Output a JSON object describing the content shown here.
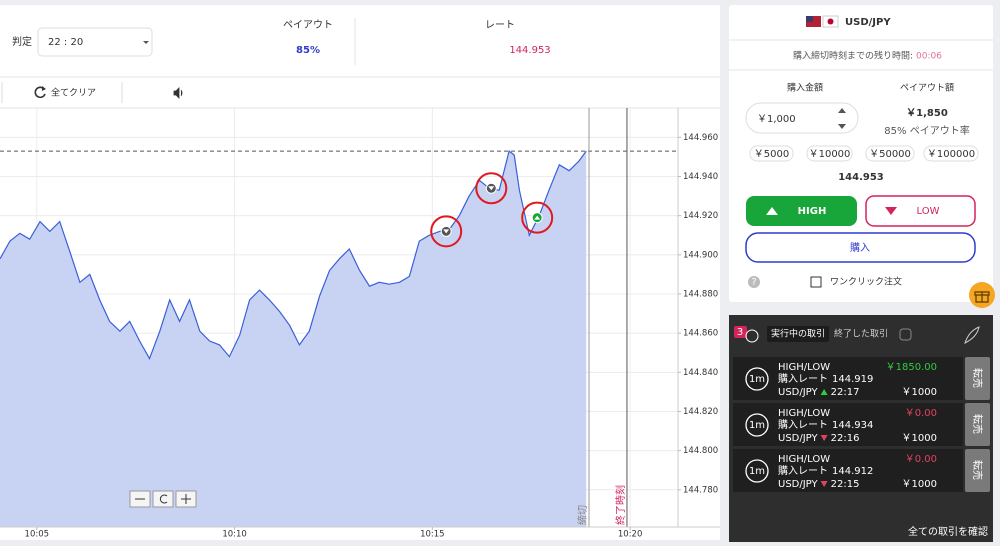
{
  "header": {
    "judgement_label": "判定",
    "judgement_time": "22 : 20",
    "payout_label": "ペイアウト",
    "payout": "85%",
    "rate_label": "レート",
    "rate": "144.953"
  },
  "toolbar": {
    "clear_all": "全てクリア"
  },
  "chart_data": {
    "type": "area",
    "color": "#3a5fd9",
    "fill_color": "#c8d3f3",
    "xlim": [
      604.07,
      621.21
    ],
    "xticks": [
      {
        "value": 605,
        "label": "10:05"
      },
      {
        "value": 610,
        "label": "10:10"
      },
      {
        "value": 615,
        "label": "10:15"
      },
      {
        "value": 620,
        "label": "10:20"
      }
    ],
    "ylim": [
      144.761,
      144.975
    ],
    "yticks": [
      {
        "value": 144.78,
        "label": "144.780"
      },
      {
        "value": 144.8,
        "label": "144.800"
      },
      {
        "value": 144.82,
        "label": "144.820"
      },
      {
        "value": 144.84,
        "label": "144.840"
      },
      {
        "value": 144.86,
        "label": "144.860"
      },
      {
        "value": 144.88,
        "label": "144.880"
      },
      {
        "value": 144.9,
        "label": "144.900"
      },
      {
        "value": 144.92,
        "label": "144.920"
      },
      {
        "value": 144.94,
        "label": "144.940"
      },
      {
        "value": 144.96,
        "label": "144.960"
      }
    ],
    "grid": true,
    "x": [
      604.07,
      604.32,
      604.57,
      604.82,
      605.08,
      605.33,
      605.58,
      605.83,
      606.09,
      606.34,
      606.59,
      606.84,
      607.1,
      607.35,
      607.6,
      607.85,
      608.11,
      608.36,
      608.61,
      608.86,
      609.12,
      609.37,
      609.62,
      609.87,
      610.13,
      610.38,
      610.63,
      610.88,
      611.14,
      611.39,
      611.64,
      611.89,
      612.15,
      612.4,
      612.65,
      612.9,
      613.16,
      613.41,
      613.66,
      613.91,
      614.17,
      614.42,
      614.67,
      614.92,
      615.18,
      615.43,
      615.68,
      615.93,
      616.19,
      616.44,
      616.69,
      616.94,
      617.07,
      617.2,
      617.45,
      617.7,
      617.95,
      618.21,
      618.46,
      618.71,
      618.89
    ],
    "values": [
      144.898,
      144.907,
      144.911,
      144.908,
      144.917,
      144.912,
      144.917,
      144.902,
      144.886,
      144.89,
      144.877,
      144.866,
      144.861,
      144.866,
      144.856,
      144.847,
      144.861,
      144.877,
      144.866,
      144.877,
      144.861,
      144.856,
      144.854,
      144.848,
      144.859,
      144.877,
      144.882,
      144.877,
      144.871,
      144.864,
      144.854,
      144.861,
      144.879,
      144.892,
      144.898,
      144.903,
      144.892,
      144.884,
      144.886,
      144.885,
      144.886,
      144.889,
      144.907,
      144.91,
      144.912,
      144.913,
      144.92,
      144.93,
      144.938,
      144.934,
      144.933,
      144.953,
      144.951,
      144.933,
      144.91,
      144.92,
      144.933,
      144.946,
      144.943,
      144.948,
      144.953
    ],
    "current_rate": 144.953,
    "entries": [
      {
        "x": 615.35,
        "value": 144.912,
        "direction": "down"
      },
      {
        "x": 616.49,
        "value": 144.934,
        "direction": "down"
      },
      {
        "x": 617.65,
        "value": 144.919,
        "direction": "up"
      }
    ],
    "deadline": {
      "x": 618.96,
      "label": "締切"
    },
    "end_time": {
      "x": 619.92,
      "label": "終了時刻"
    }
  },
  "order_panel": {
    "pair": "USD/JPY",
    "countdown_label": "購入締切時刻までの残り時間:",
    "countdown": "00:06",
    "amount_label": "購入金額",
    "payout_label": "ペイアウト額",
    "amount": "￥1,000",
    "payout": "￥1,850",
    "payout_rate": "85% ペイアウト率",
    "quick_amounts": [
      "￥5000",
      "￥10000",
      "￥50000",
      "￥100000"
    ],
    "rate": "144.953",
    "high": "HIGH",
    "low": "LOW",
    "buy": "購入",
    "help": "?",
    "one_click": "ワンクリック注文"
  },
  "trades_panel": {
    "badge": "3",
    "tab_active": "実行中の取引",
    "tab_closed": "終了した取引",
    "view_all": "全ての取引を確認",
    "trades": [
      {
        "duration": "1m",
        "type": "HIGH/LOW",
        "rate_label": "購入レート",
        "rate": "144.919",
        "pair": "USD/JPY",
        "direction": "up",
        "time": "22:17",
        "payout": "￥1850.00",
        "amount": "￥1000",
        "resell": "転売"
      },
      {
        "duration": "1m",
        "type": "HIGH/LOW",
        "rate_label": "購入レート",
        "rate": "144.934",
        "pair": "USD/JPY",
        "direction": "down",
        "time": "22:16",
        "payout": "￥0.00",
        "amount": "￥1000",
        "resell": "転売"
      },
      {
        "duration": "1m",
        "type": "HIGH/LOW",
        "rate_label": "購入レート",
        "rate": "144.912",
        "pair": "USD/JPY",
        "direction": "down",
        "time": "22:15",
        "payout": "￥0.00",
        "amount": "￥1000",
        "resell": "転売"
      }
    ]
  }
}
